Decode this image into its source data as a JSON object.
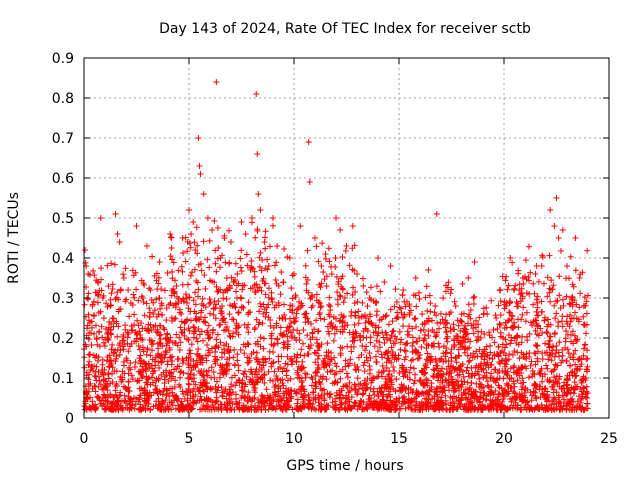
{
  "chart_data": {
    "type": "scatter",
    "title": "Day 143 of 2024, Rate Of TEC Index for receiver sctb",
    "xlabel": "GPS time / hours",
    "ylabel": "ROTI / TECUs",
    "xlim": [
      0,
      25
    ],
    "ylim": [
      0,
      0.9
    ],
    "xticks": [
      0,
      5,
      10,
      15,
      20,
      25
    ],
    "yticks": [
      0,
      0.1,
      0.2,
      0.3,
      0.4,
      0.5,
      0.6,
      0.7,
      0.8,
      0.9
    ],
    "grid": true,
    "marker": "+",
    "color": "#ff0000",
    "points": [
      [
        0.05,
        0.42
      ],
      [
        0.1,
        0.38
      ],
      [
        0.15,
        0.3
      ],
      [
        0.2,
        0.36
      ],
      [
        0.3,
        0.12
      ],
      [
        0.4,
        0.28
      ],
      [
        0.5,
        0.08
      ],
      [
        0.6,
        0.2
      ],
      [
        0.8,
        0.5
      ],
      [
        0.9,
        0.3
      ],
      [
        1.0,
        0.18
      ],
      [
        1.2,
        0.24
      ],
      [
        1.5,
        0.51
      ],
      [
        1.6,
        0.46
      ],
      [
        1.7,
        0.44
      ],
      [
        1.9,
        0.35
      ],
      [
        2.1,
        0.32
      ],
      [
        2.3,
        0.22
      ],
      [
        2.5,
        0.48
      ],
      [
        2.8,
        0.3
      ],
      [
        3.0,
        0.43
      ],
      [
        3.3,
        0.26
      ],
      [
        3.6,
        0.39
      ],
      [
        3.9,
        0.2
      ],
      [
        4.1,
        0.46
      ],
      [
        4.4,
        0.33
      ],
      [
        4.7,
        0.45
      ],
      [
        4.9,
        0.3
      ],
      [
        5.0,
        0.52
      ],
      [
        5.1,
        0.46
      ],
      [
        5.2,
        0.49
      ],
      [
        5.3,
        0.42
      ],
      [
        5.45,
        0.7
      ],
      [
        5.5,
        0.63
      ],
      [
        5.55,
        0.61
      ],
      [
        5.7,
        0.56
      ],
      [
        5.9,
        0.5
      ],
      [
        6.1,
        0.47
      ],
      [
        6.3,
        0.84
      ],
      [
        6.5,
        0.4
      ],
      [
        6.8,
        0.35
      ],
      [
        7.0,
        0.44
      ],
      [
        7.3,
        0.36
      ],
      [
        7.5,
        0.49
      ],
      [
        7.7,
        0.46
      ],
      [
        8.0,
        0.5
      ],
      [
        8.2,
        0.81
      ],
      [
        8.25,
        0.66
      ],
      [
        8.3,
        0.56
      ],
      [
        8.4,
        0.52
      ],
      [
        8.6,
        0.44
      ],
      [
        8.8,
        0.38
      ],
      [
        9.0,
        0.5
      ],
      [
        9.2,
        0.43
      ],
      [
        9.5,
        0.34
      ],
      [
        9.8,
        0.4
      ],
      [
        10.0,
        0.36
      ],
      [
        10.3,
        0.48
      ],
      [
        10.7,
        0.69
      ],
      [
        10.75,
        0.59
      ],
      [
        11.0,
        0.45
      ],
      [
        11.3,
        0.38
      ],
      [
        11.5,
        0.41
      ],
      [
        11.8,
        0.36
      ],
      [
        12.0,
        0.5
      ],
      [
        12.2,
        0.47
      ],
      [
        12.5,
        0.43
      ],
      [
        12.8,
        0.48
      ],
      [
        13.0,
        0.36
      ],
      [
        13.3,
        0.33
      ],
      [
        13.6,
        0.3
      ],
      [
        14.0,
        0.4
      ],
      [
        14.3,
        0.34
      ],
      [
        14.6,
        0.38
      ],
      [
        14.9,
        0.29
      ],
      [
        15.2,
        0.32
      ],
      [
        15.5,
        0.28
      ],
      [
        15.8,
        0.35
      ],
      [
        16.1,
        0.26
      ],
      [
        16.4,
        0.37
      ],
      [
        16.8,
        0.51
      ],
      [
        17.1,
        0.3
      ],
      [
        17.4,
        0.26
      ],
      [
        17.7,
        0.28
      ],
      [
        18.0,
        0.24
      ],
      [
        18.3,
        0.35
      ],
      [
        18.6,
        0.39
      ],
      [
        18.9,
        0.2
      ],
      [
        19.2,
        0.26
      ],
      [
        19.5,
        0.22
      ],
      [
        19.8,
        0.32
      ],
      [
        20.1,
        0.28
      ],
      [
        20.3,
        0.4
      ],
      [
        20.6,
        0.29
      ],
      [
        20.9,
        0.35
      ],
      [
        21.2,
        0.31
      ],
      [
        21.5,
        0.36
      ],
      [
        21.8,
        0.38
      ],
      [
        22.2,
        0.52
      ],
      [
        22.4,
        0.48
      ],
      [
        22.5,
        0.55
      ],
      [
        22.6,
        0.45
      ],
      [
        22.8,
        0.47
      ],
      [
        23.0,
        0.38
      ],
      [
        23.2,
        0.3
      ],
      [
        23.4,
        0.45
      ],
      [
        23.6,
        0.35
      ],
      [
        23.8,
        0.28
      ],
      [
        23.9,
        0.1
      ],
      [
        23.95,
        0.05
      ]
    ]
  }
}
